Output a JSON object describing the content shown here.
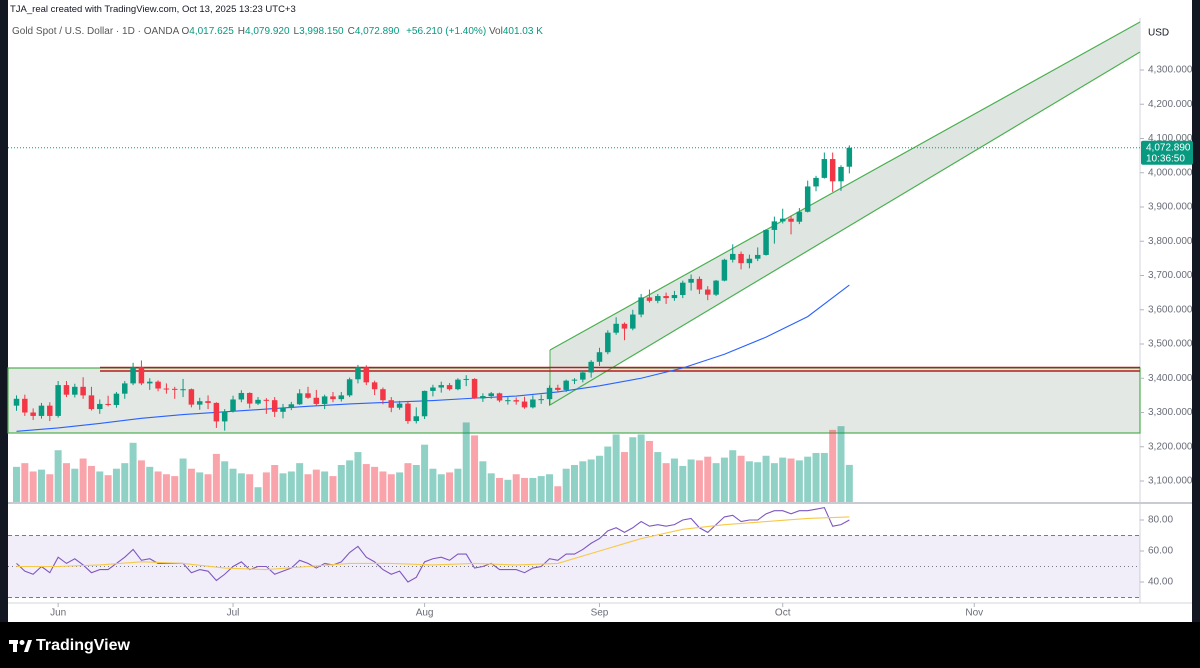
{
  "header": {
    "author_line": "TJA_real created with TradingView.com, Oct 13, 2025 13:23 UTC+3",
    "symbol": "Gold Spot / U.S. Dollar · 1D · OANDA",
    "ohlc": [
      {
        "label": "O",
        "value": "4,017.625"
      },
      {
        "label": "H",
        "value": "4,079.920"
      },
      {
        "label": "L",
        "value": "3,998.150"
      },
      {
        "label": "C",
        "value": "4,072.890"
      }
    ],
    "change": "+56.210 (+1.40%)",
    "volume_label": "Vol",
    "volume_value": "401.03 K"
  },
  "footer": {
    "brand": "TradingView"
  },
  "chart_data": {
    "type": "candlestick",
    "currency": "USD",
    "up_color": "#089981",
    "down_color": "#f23645",
    "open": [
      3320,
      3340,
      3300,
      3290,
      3320,
      3290,
      3380,
      3352,
      3375,
      3350,
      3310,
      3325,
      3322,
      3355,
      3385,
      3432,
      3385,
      3390,
      3370,
      3369,
      3368,
      3368,
      3323,
      3333,
      3328,
      3274,
      3303,
      3338,
      3357,
      3326,
      3337,
      3336,
      3302,
      3313,
      3324,
      3356,
      3343,
      3325,
      3347,
      3339,
      3350,
      3397,
      3432,
      3388,
      3368,
      3336,
      3314,
      3326,
      3275,
      3289,
      3363,
      3373,
      3380,
      3368,
      3396,
      3398,
      3341,
      3348,
      3356,
      3335,
      3336,
      3332,
      3315,
      3338,
      3339,
      3372,
      3366,
      3393,
      3396,
      3417,
      3448,
      3476,
      3533,
      3559,
      3545,
      3586,
      3636,
      3626,
      3640,
      3634,
      3643,
      3679,
      3690,
      3659,
      3644,
      3685,
      3746,
      3763,
      3736,
      3749,
      3760,
      3833,
      3858,
      3866,
      3857,
      3886,
      3960,
      3985,
      4040,
      3975,
      4017.625
    ],
    "high": [
      3350,
      3352,
      3312,
      3328,
      3330,
      3392,
      3392,
      3384,
      3403,
      3375,
      3338,
      3349,
      3360,
      3392,
      3445,
      3452,
      3400,
      3394,
      3385,
      3375,
      3398,
      3370,
      3343,
      3350,
      3330,
      3310,
      3349,
      3365,
      3359,
      3345,
      3342,
      3345,
      3325,
      3331,
      3368,
      3375,
      3366,
      3352,
      3360,
      3360,
      3402,
      3439,
      3438,
      3393,
      3373,
      3345,
      3334,
      3334,
      3315,
      3364,
      3381,
      3390,
      3386,
      3400,
      3409,
      3400,
      3356,
      3360,
      3358,
      3347,
      3344,
      3346,
      3350,
      3352,
      3379,
      3381,
      3396,
      3400,
      3423,
      3453,
      3489,
      3540,
      3578,
      3563,
      3600,
      3646,
      3659,
      3646,
      3650,
      3655,
      3685,
      3703,
      3697,
      3669,
      3687,
      3749,
      3791,
      3770,
      3761,
      3782,
      3835,
      3872,
      3895,
      3875,
      3897,
      3977,
      3991,
      4059,
      4059,
      4022,
      4079.92
    ],
    "low": [
      3305,
      3290,
      3278,
      3282,
      3275,
      3285,
      3345,
      3344,
      3340,
      3306,
      3296,
      3318,
      3314,
      3340,
      3380,
      3380,
      3366,
      3362,
      3355,
      3340,
      3345,
      3315,
      3308,
      3310,
      3255,
      3247,
      3300,
      3330,
      3312,
      3322,
      3296,
      3287,
      3283,
      3307,
      3322,
      3340,
      3320,
      3310,
      3330,
      3332,
      3345,
      3385,
      3380,
      3351,
      3324,
      3301,
      3308,
      3267,
      3268,
      3281,
      3347,
      3358,
      3364,
      3365,
      3377,
      3340,
      3331,
      3340,
      3330,
      3323,
      3323,
      3311,
      3312,
      3325,
      3320,
      3358,
      3360,
      3383,
      3388,
      3402,
      3436,
      3470,
      3527,
      3511,
      3540,
      3578,
      3621,
      3619,
      3617,
      3626,
      3634,
      3656,
      3646,
      3628,
      3640,
      3683,
      3738,
      3718,
      3721,
      3742,
      3758,
      3793,
      3852,
      3820,
      3850,
      3884,
      3946,
      3983,
      3944,
      3947,
      3998.15
    ],
    "close": [
      3340,
      3300,
      3290,
      3320,
      3290,
      3380,
      3352,
      3375,
      3350,
      3310,
      3325,
      3322,
      3355,
      3385,
      3432,
      3385,
      3390,
      3370,
      3369,
      3368,
      3368,
      3323,
      3333,
      3328,
      3274,
      3303,
      3338,
      3357,
      3326,
      3337,
      3336,
      3302,
      3313,
      3324,
      3356,
      3343,
      3325,
      3347,
      3339,
      3350,
      3397,
      3432,
      3388,
      3368,
      3336,
      3314,
      3326,
      3275,
      3289,
      3363,
      3373,
      3380,
      3368,
      3396,
      3398,
      3341,
      3348,
      3356,
      3335,
      3336,
      3332,
      3315,
      3338,
      3339,
      3372,
      3366,
      3393,
      3396,
      3417,
      3448,
      3476,
      3533,
      3559,
      3545,
      3586,
      3636,
      3626,
      3640,
      3634,
      3643,
      3679,
      3690,
      3659,
      3644,
      3685,
      3746,
      3763,
      3736,
      3749,
      3760,
      3833,
      3858,
      3866,
      3857,
      3886,
      3960,
      3985,
      4040,
      3975,
      4017,
      4072.89
    ],
    "xlim": [
      -1.02,
      134.9
    ],
    "xticks": [
      {
        "value": 5,
        "label": "Jun"
      },
      {
        "value": 26,
        "label": "Jul"
      },
      {
        "value": 49,
        "label": "Aug"
      },
      {
        "value": 70,
        "label": "Sep"
      },
      {
        "value": 92,
        "label": "Oct"
      },
      {
        "value": 115,
        "label": "Nov"
      }
    ],
    "ylim": [
      3038.7,
      4451.8
    ],
    "yticks": [
      {
        "value": 3100,
        "label": "3,100.000"
      },
      {
        "value": 3200,
        "label": "3,200.000"
      },
      {
        "value": 3300,
        "label": "3,300.000"
      },
      {
        "value": 3400,
        "label": "3,400.000"
      },
      {
        "value": 3500,
        "label": "3,500.000"
      },
      {
        "value": 3600,
        "label": "3,600.000"
      },
      {
        "value": 3700,
        "label": "3,700.000"
      },
      {
        "value": 3800,
        "label": "3,800.000"
      },
      {
        "value": 3900,
        "label": "3,900.000"
      },
      {
        "value": 4000,
        "label": "4,000.000"
      },
      {
        "value": 4100,
        "label": "4,100.000"
      },
      {
        "value": 4200,
        "label": "4,200.000"
      },
      {
        "value": 4300,
        "label": "4,300.000"
      }
    ],
    "last_price": {
      "value": 4072.89,
      "label": "4,072.890",
      "countdown": "10:36:50"
    },
    "volume": {
      "vlim": [
        0,
        1200
      ],
      "values": [
        380,
        420,
        330,
        350,
        300,
        560,
        420,
        360,
        470,
        390,
        330,
        290,
        360,
        420,
        640,
        450,
        380,
        330,
        300,
        280,
        470,
        360,
        320,
        300,
        520,
        440,
        360,
        310,
        300,
        160,
        320,
        400,
        310,
        330,
        420,
        300,
        350,
        330,
        280,
        400,
        450,
        540,
        410,
        380,
        330,
        300,
        320,
        420,
        400,
        620,
        360,
        300,
        320,
        360,
        860,
        720,
        440,
        310,
        260,
        240,
        300,
        260,
        260,
        280,
        300,
        170,
        360,
        400,
        440,
        460,
        500,
        600,
        730,
        540,
        700,
        730,
        660,
        540,
        420,
        470,
        390,
        460,
        450,
        490,
        420,
        480,
        560,
        500,
        440,
        430,
        500,
        420,
        480,
        470,
        450,
        490,
        530,
        530,
        780,
        820,
        401.03
      ]
    },
    "ma": {
      "color": "#2962ff",
      "x": [
        0,
        5,
        10,
        15,
        20,
        25,
        30,
        35,
        40,
        45,
        50,
        55,
        60,
        65,
        70,
        75,
        80,
        85,
        90,
        95,
        100
      ],
      "values": [
        3245,
        3255,
        3268,
        3283,
        3294,
        3302,
        3310,
        3318,
        3325,
        3330,
        3335,
        3342,
        3348,
        3360,
        3378,
        3400,
        3430,
        3470,
        3520,
        3580,
        3672
      ]
    },
    "rsi": {
      "color": "#7e57c2",
      "ylim": [
        28.39,
        89.68
      ],
      "levels": [
        70,
        50,
        30
      ],
      "yticks": [
        {
          "value": 80,
          "label": "80.00"
        },
        {
          "value": 60,
          "label": "60.00"
        },
        {
          "value": 40,
          "label": "40.00"
        }
      ],
      "values": [
        52,
        47,
        45,
        50,
        46,
        56,
        52,
        55,
        51,
        46,
        48,
        48,
        52,
        56,
        61,
        54,
        55,
        52,
        52,
        52,
        52,
        46,
        48,
        47,
        41,
        45,
        50,
        53,
        48,
        50,
        50,
        45,
        47,
        49,
        54,
        52,
        49,
        52,
        51,
        53,
        59,
        63,
        56,
        53,
        48,
        45,
        47,
        40,
        43,
        53,
        55,
        56,
        54,
        58,
        58,
        49,
        50,
        52,
        48,
        48,
        48,
        46,
        49,
        50,
        55,
        54,
        58,
        58,
        61,
        65,
        68,
        73,
        75,
        72,
        75,
        79,
        76,
        77,
        76,
        77,
        80,
        81,
        75,
        72,
        77,
        82,
        83,
        79,
        80,
        80,
        84,
        86,
        86,
        84,
        86,
        86,
        87,
        88,
        76,
        77,
        80
      ],
      "ma": {
        "color": "#f7c948",
        "x": [
          0,
          5,
          10,
          15,
          20,
          25,
          30,
          35,
          40,
          45,
          50,
          55,
          60,
          65,
          70,
          75,
          80,
          85,
          90,
          95,
          100
        ],
        "values": [
          50,
          50,
          51,
          53,
          52,
          49,
          48,
          50,
          52,
          52,
          51,
          52,
          51,
          52,
          60,
          68,
          74,
          77,
          79,
          81,
          82
        ]
      }
    }
  }
}
